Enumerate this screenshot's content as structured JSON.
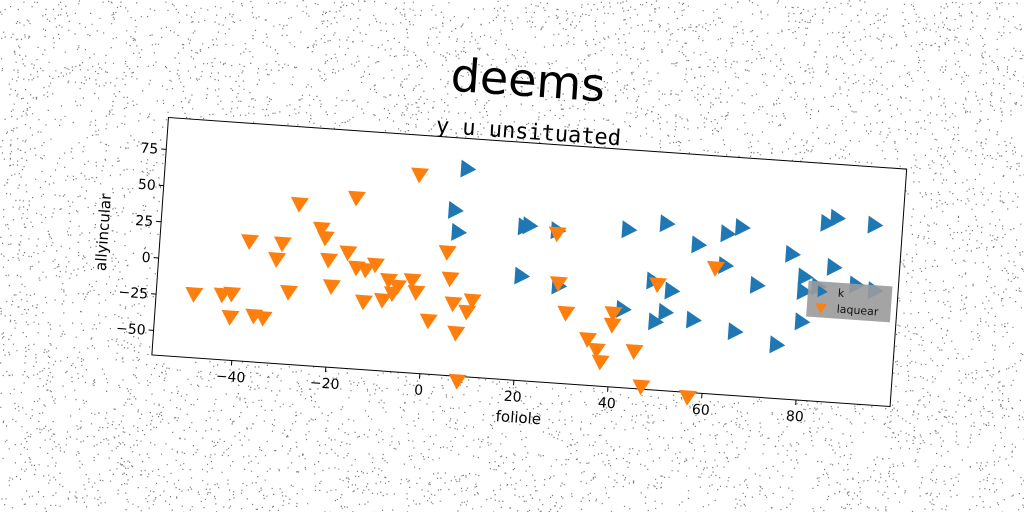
{
  "chart_data": {
    "type": "scatter",
    "title": "deems",
    "subtitle": "y u unsituated",
    "xlabel": "foliole",
    "ylabel": "allyincular",
    "xlim": [
      -57,
      100
    ],
    "ylim": [
      -67,
      97
    ],
    "xticks": [
      -40,
      -20,
      0,
      20,
      40,
      60,
      80
    ],
    "yticks": [
      -50,
      -25,
      0,
      25,
      50,
      75
    ],
    "xtick_labels": [
      "−40",
      "−20",
      "0",
      "20",
      "40",
      "60",
      "80"
    ],
    "ytick_labels": [
      "−50",
      "−25",
      "0",
      "25",
      "50",
      "75"
    ],
    "grid": false,
    "legend_position": "center-right",
    "series": [
      {
        "name": "k",
        "color": "#1f77b4",
        "marker": "triangle-right",
        "points": [
          [
            7,
            76
          ],
          [
            5,
            47
          ],
          [
            6,
            32
          ],
          [
            20,
            39
          ],
          [
            21,
            40
          ],
          [
            27,
            38
          ],
          [
            42,
            42
          ],
          [
            50,
            48
          ],
          [
            57,
            35
          ],
          [
            63,
            44
          ],
          [
            66,
            49
          ],
          [
            77,
            33
          ],
          [
            84,
            56
          ],
          [
            86,
            60
          ],
          [
            94,
            57
          ],
          [
            80,
            18
          ],
          [
            80,
            8
          ],
          [
            83,
            12
          ],
          [
            86,
            26
          ],
          [
            91,
            15
          ],
          [
            95,
            12
          ],
          [
            70,
            10
          ],
          [
            63,
            22
          ],
          [
            48,
            8
          ],
          [
            52,
            2
          ],
          [
            20,
            5
          ],
          [
            28,
            0
          ],
          [
            42,
            -13
          ],
          [
            51,
            -13
          ],
          [
            57,
            -17
          ],
          [
            66,
            -23
          ],
          [
            75,
            -30
          ],
          [
            80,
            -13
          ],
          [
            49,
            -20
          ]
        ]
      },
      {
        "name": "laquear",
        "color": "#ff7f0e",
        "marker": "triangle-down",
        "points": [
          [
            -3,
            70
          ],
          [
            -28,
            44
          ],
          [
            -16,
            51
          ],
          [
            -23,
            28
          ],
          [
            -22,
            22
          ],
          [
            -21,
            7
          ],
          [
            -38,
            16
          ],
          [
            -31,
            16
          ],
          [
            -32,
            5
          ],
          [
            -17,
            13
          ],
          [
            -15,
            3
          ],
          [
            -13,
            2
          ],
          [
            -11,
            6
          ],
          [
            -8,
            -4
          ],
          [
            -6,
            -8
          ],
          [
            -3,
            -3
          ],
          [
            -2,
            -11
          ],
          [
            -7,
            -13
          ],
          [
            -9,
            -18
          ],
          [
            -13,
            -20
          ],
          [
            -20,
            -11
          ],
          [
            -29,
            -17
          ],
          [
            -49,
            -23
          ],
          [
            -43,
            -22
          ],
          [
            -41,
            -37
          ],
          [
            -41,
            -21
          ],
          [
            -36,
            -35
          ],
          [
            -34,
            -36
          ],
          [
            1,
            -30
          ],
          [
            5,
            0
          ],
          [
            4,
            18
          ],
          [
            6,
            -17
          ],
          [
            7,
            -37
          ],
          [
            9,
            -22
          ],
          [
            10,
            -14
          ],
          [
            8,
            -70
          ],
          [
            28,
            2
          ],
          [
            30,
            -18
          ],
          [
            27,
            36
          ],
          [
            35,
            -35
          ],
          [
            37,
            -42
          ],
          [
            38,
            -50
          ],
          [
            40,
            -16
          ],
          [
            40,
            -24
          ],
          [
            45,
            -41
          ],
          [
            47,
            -65
          ],
          [
            49,
            6
          ],
          [
            57,
            -70
          ],
          [
            61,
            20
          ]
        ]
      }
    ]
  }
}
